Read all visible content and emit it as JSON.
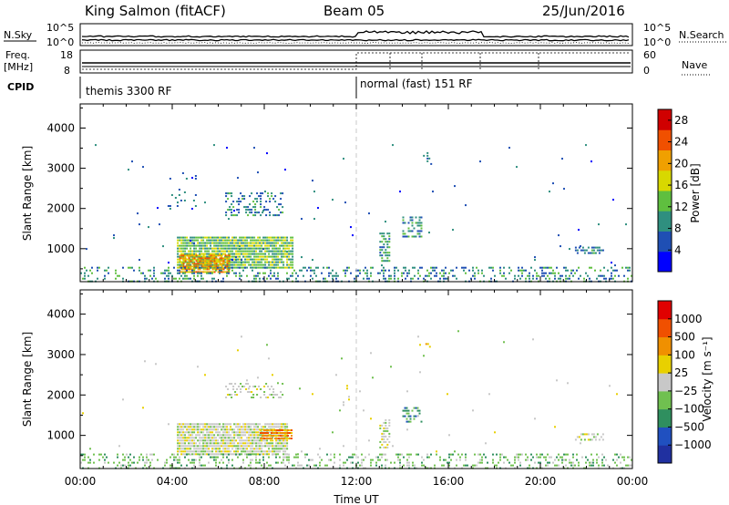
{
  "header": {
    "radar_title": "King Salmon (fitACF)",
    "beam_title": "Beam 05",
    "date": "25/Jun/2016"
  },
  "status_panels": {
    "nsky_label": "N.Sky",
    "nsky_ticks": [
      "10^5",
      "10^0"
    ],
    "nsearch_label": "N.Search",
    "nsearch_ticks": [
      "10^5",
      "10^0"
    ],
    "freq_label_line1": "Freq.",
    "freq_label_line2": "[MHz]",
    "freq_ticks": [
      "18",
      "8"
    ],
    "nave_label": "Nave",
    "nave_ticks": [
      "60",
      "0"
    ],
    "cpid_label": "CPID",
    "cpid_segments": [
      {
        "label": "themis 3300 RF",
        "start_hour": 0
      },
      {
        "label": "normal (fast) 151 RF",
        "start_hour": 12
      }
    ]
  },
  "chart_data": [
    {
      "type": "heatmap",
      "title": "",
      "ylabel": "Slant Range [km]",
      "xlabel": "",
      "ylim": [
        180,
        4600
      ],
      "xlim": [
        0,
        24
      ],
      "yticks": [
        1000,
        2000,
        3000,
        4000
      ],
      "colorbar": {
        "label": "Power [dB]",
        "tick_labels": [
          "4",
          "8",
          "12",
          "16",
          "20",
          "24",
          "28"
        ],
        "tick_values": [
          4,
          8,
          12,
          16,
          20,
          24,
          28
        ],
        "range": [
          0,
          30
        ],
        "colors": [
          "#0000ff",
          "#1f4fb4",
          "#2f8f7f",
          "#5fbf3f",
          "#d8d800",
          "#f0a000",
          "#f05000",
          "#d00000"
        ]
      },
      "scatter_regions": [
        {
          "t0": 4.2,
          "t1": 9.2,
          "r0": 500,
          "r1": 1300,
          "density": 0.9,
          "level": 13
        },
        {
          "t0": 4.3,
          "t1": 6.5,
          "r0": 400,
          "r1": 850,
          "density": 0.9,
          "level": 22
        },
        {
          "t0": 6.3,
          "t1": 8.8,
          "r0": 1800,
          "r1": 2400,
          "density": 0.35,
          "level": 8
        },
        {
          "t0": 3.8,
          "t1": 5.0,
          "r0": 2000,
          "r1": 2900,
          "density": 0.08,
          "level": 6
        },
        {
          "t0": 13.0,
          "t1": 13.4,
          "r0": 700,
          "r1": 1400,
          "density": 0.6,
          "level": 9
        },
        {
          "t0": 14.0,
          "t1": 14.8,
          "r0": 1300,
          "r1": 1800,
          "density": 0.4,
          "level": 9
        },
        {
          "t0": 14.9,
          "t1": 15.3,
          "r0": 3100,
          "r1": 3400,
          "density": 0.3,
          "level": 6
        },
        {
          "t0": 21.5,
          "t1": 22.7,
          "r0": 850,
          "r1": 1050,
          "density": 0.6,
          "level": 7
        },
        {
          "t0": 0.0,
          "t1": 24.0,
          "r0": 200,
          "r1": 550,
          "density": 0.3,
          "level": 8
        },
        {
          "t0": 0.0,
          "t1": 24.0,
          "r0": 550,
          "r1": 3600,
          "density": 0.006,
          "level": 5
        }
      ]
    },
    {
      "type": "heatmap",
      "title": "",
      "ylabel": "Slant Range [km]",
      "xlabel": "Time UT",
      "ylim": [
        180,
        4600
      ],
      "xlim": [
        0,
        24
      ],
      "yticks": [
        1000,
        2000,
        3000,
        4000
      ],
      "xticks": [
        0,
        4,
        8,
        12,
        16,
        20,
        24
      ],
      "xtick_labels": [
        "00:00",
        "04:00",
        "08:00",
        "12:00",
        "16:00",
        "20:00",
        "00:00"
      ],
      "colorbar": {
        "label": "Velocity [m s⁻¹]",
        "tick_labels": [
          "1000",
          "500",
          "100",
          "25",
          "−25",
          "−100",
          "−500",
          "−1000"
        ],
        "tick_values": [
          1000,
          500,
          100,
          25,
          -25,
          -100,
          -500,
          -1000
        ],
        "colors": [
          "#2030a0",
          "#2050c0",
          "#2f8f5f",
          "#70c050",
          "#c8c8c8",
          "#e8d000",
          "#f09000",
          "#f05000",
          "#e00000"
        ]
      },
      "scatter_regions": [
        {
          "t0": 4.2,
          "t1": 9.0,
          "r0": 550,
          "r1": 1300,
          "density": 0.9,
          "level": 4
        },
        {
          "t0": 7.8,
          "t1": 9.2,
          "r0": 900,
          "r1": 1150,
          "density": 0.9,
          "level": 6
        },
        {
          "t0": 6.3,
          "t1": 8.8,
          "r0": 1900,
          "r1": 2300,
          "density": 0.3,
          "level": 4
        },
        {
          "t0": 13.0,
          "t1": 13.4,
          "r0": 700,
          "r1": 1400,
          "density": 0.6,
          "level": 4
        },
        {
          "t0": 14.0,
          "t1": 14.8,
          "r0": 1300,
          "r1": 1700,
          "density": 0.4,
          "level": 2
        },
        {
          "t0": 15.0,
          "t1": 15.2,
          "r0": 3150,
          "r1": 3350,
          "density": 0.4,
          "level": 6
        },
        {
          "t0": 21.5,
          "t1": 22.7,
          "r0": 900,
          "r1": 1050,
          "density": 0.5,
          "level": 4
        },
        {
          "t0": 0.0,
          "t1": 24.0,
          "r0": 200,
          "r1": 550,
          "density": 0.3,
          "level": 3
        },
        {
          "t0": 0.0,
          "t1": 24.0,
          "r0": 550,
          "r1": 3600,
          "density": 0.006,
          "level": 4
        }
      ]
    }
  ]
}
